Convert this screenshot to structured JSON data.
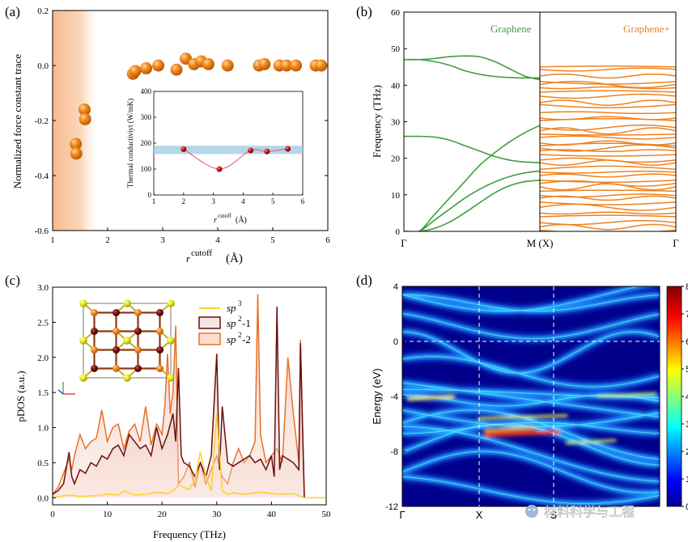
{
  "panel_labels": {
    "a": "(a)",
    "b": "(b)",
    "c": "(c)",
    "d": "(d)"
  },
  "colors": {
    "orange": "#f0821e",
    "green": "#3f9e3f",
    "darkred": "#6b0f0f",
    "band": "#a9cfe6"
  },
  "watermark": "材料科学与工程",
  "chart_data": [
    {
      "id": "a",
      "type": "scatter",
      "xlabel": "r",
      "xlabel_sup": "cutoff",
      "xlabel_unit": "(Å)",
      "ylabel": "Normalized force constant trace",
      "xlim": [
        1,
        6
      ],
      "ylim": [
        -0.6,
        0.2
      ],
      "xticks": [
        1,
        2,
        3,
        4,
        5,
        6
      ],
      "yticks": [
        -0.6,
        -0.4,
        -0.2,
        0.0,
        0.2
      ],
      "ytick_labels": [
        "-0.6",
        "-0.4",
        "-0.2",
        "0.0",
        "0.2"
      ],
      "points": [
        [
          1.42,
          -0.285
        ],
        [
          1.43,
          -0.32
        ],
        [
          1.58,
          -0.16
        ],
        [
          1.59,
          -0.195
        ],
        [
          2.46,
          -0.03
        ],
        [
          2.5,
          -0.02
        ],
        [
          2.7,
          -0.01
        ],
        [
          2.92,
          0.0
        ],
        [
          3.25,
          -0.015
        ],
        [
          3.42,
          0.025
        ],
        [
          3.57,
          0.005
        ],
        [
          3.7,
          0.015
        ],
        [
          3.83,
          0.005
        ],
        [
          4.18,
          0.0
        ],
        [
          4.75,
          0.0
        ],
        [
          4.85,
          0.005
        ],
        [
          5.12,
          0.0
        ],
        [
          5.25,
          0.0
        ],
        [
          5.42,
          0.0
        ],
        [
          5.78,
          0.0
        ],
        [
          5.88,
          0.0
        ]
      ],
      "inset": {
        "type": "line",
        "xlabel": "r",
        "xlabel_sup": "cutoff",
        "xlabel_unit": "(Å)",
        "ylabel": "Thermal conductiviyt (W/mK)",
        "xlim": [
          1,
          6
        ],
        "ylim": [
          0,
          400
        ],
        "xticks": [
          1,
          2,
          3,
          4,
          5,
          6
        ],
        "yticks": [
          0,
          100,
          200,
          300,
          400
        ],
        "band": [
          158,
          190
        ],
        "points": [
          [
            2.0,
            177
          ],
          [
            3.2,
            100
          ],
          [
            4.25,
            172
          ],
          [
            4.8,
            168
          ],
          [
            5.5,
            178
          ]
        ]
      }
    },
    {
      "id": "b",
      "type": "line",
      "ylabel": "Frequency (THz)",
      "ylim": [
        0,
        60
      ],
      "yticks": [
        0,
        10,
        20,
        30,
        40,
        50,
        60
      ],
      "xtick_labels": [
        "Γ",
        "M (X)",
        "Γ"
      ],
      "series_labels": [
        "Graphene",
        "Graphene+"
      ],
      "graphene_curves": [
        [
          0,
          0,
          4.5,
          9,
          13.5,
          18,
          21.5,
          24.5,
          27,
          29
        ],
        [
          0,
          0,
          3,
          6,
          9,
          11.5,
          13.5,
          15,
          16,
          16.5
        ],
        [
          0,
          0,
          0.8,
          2.5,
          5,
          7.8,
          10.5,
          12.5,
          13.6,
          14
        ],
        [
          0,
          26,
          25.8,
          25,
          23.5,
          22,
          20.5,
          19.5,
          19,
          18.8
        ],
        [
          0,
          47,
          47.3,
          47.8,
          48,
          47.8,
          46.5,
          44.5,
          42.5,
          41.5
        ],
        [
          0,
          47,
          46.5,
          45.5,
          44,
          43,
          42.4,
          42.1,
          42,
          42
        ]
      ],
      "graphene_plus_levels": [
        45,
        44.3,
        42.5,
        41,
        40.2,
        39.3,
        38.1,
        37,
        35.2,
        34.7,
        32.5,
        31,
        30.3,
        28.4,
        27.5,
        26.6,
        25.7,
        24.2,
        23.4,
        22.8,
        22.1,
        21,
        19.5,
        18.8,
        17,
        16.2,
        15.3,
        14,
        13.1,
        12.2,
        11,
        9.8,
        9.1,
        8,
        6.6,
        5,
        4,
        2.4,
        1.2,
        0.3
      ]
    },
    {
      "id": "c",
      "type": "area",
      "xlabel": "Frequency (THz)",
      "ylabel": "pDOS (a.u.)",
      "xlim": [
        0,
        50
      ],
      "ylim": [
        -0.1,
        3.0
      ],
      "xticks": [
        0,
        10,
        20,
        30,
        40,
        50
      ],
      "yticks": [
        0.0,
        0.5,
        1.0,
        1.5,
        2.0,
        2.5,
        3.0
      ],
      "ytick_labels": [
        "0.0",
        "0.5",
        "1.0",
        "1.5",
        "2.0",
        "2.5",
        "3.0"
      ],
      "legend": [
        "sp",
        "sp",
        "sp"
      ],
      "legend_sup": [
        "3",
        "2",
        "2"
      ],
      "legend_suffix": [
        "",
        "-1",
        "-2"
      ],
      "series": [
        {
          "name": "sp3",
          "color": "#ffd21e",
          "x": [
            0,
            3,
            5,
            8,
            10,
            12,
            13,
            15,
            17,
            19,
            21,
            22,
            23,
            24,
            25,
            26,
            27,
            28,
            29,
            30,
            31,
            32,
            33,
            35,
            38,
            40,
            42,
            44,
            45,
            46,
            50
          ],
          "y": [
            0.0,
            0.04,
            0.02,
            0.03,
            0.05,
            0.04,
            0.1,
            0.04,
            0.05,
            0.08,
            0.06,
            0.1,
            0.18,
            0.15,
            0.12,
            0.25,
            0.65,
            0.3,
            0.1,
            1.2,
            0.1,
            0.05,
            0.07,
            0.05,
            0.08,
            0.06,
            0.05,
            0.06,
            0.03,
            0.0,
            0.0
          ]
        },
        {
          "name": "sp2-1",
          "color": "#6b0f0f",
          "x": [
            0,
            1,
            2,
            3,
            3.5,
            4,
            5,
            6,
            7,
            8,
            9,
            10,
            11,
            12,
            13,
            14,
            15,
            16,
            17,
            18,
            19,
            20,
            21,
            22,
            22.5,
            23,
            23.5,
            24,
            25,
            26,
            27,
            28,
            29,
            30,
            30.5,
            31,
            32,
            33,
            34,
            35,
            36,
            37,
            38,
            39,
            40,
            40.5,
            41,
            41.5,
            42,
            43,
            44,
            45,
            45.3,
            46,
            50
          ],
          "y": [
            0.05,
            0.1,
            0.2,
            0.65,
            0.3,
            0.2,
            0.4,
            0.35,
            0.5,
            0.45,
            0.6,
            0.55,
            0.7,
            0.75,
            0.6,
            0.9,
            0.8,
            0.7,
            0.75,
            0.6,
            1.0,
            0.7,
            0.9,
            1.2,
            0.8,
            1.85,
            0.6,
            0.5,
            0.45,
            0.3,
            0.5,
            0.3,
            0.6,
            2.05,
            0.4,
            1.3,
            0.5,
            0.45,
            0.5,
            0.55,
            0.6,
            0.5,
            0.55,
            0.4,
            0.6,
            0.3,
            2.72,
            0.4,
            0.6,
            0.55,
            0.5,
            0.4,
            2.2,
            0.0,
            0.0
          ]
        },
        {
          "name": "sp2-2",
          "color": "#e8702a",
          "x": [
            0,
            1,
            2,
            3,
            3.5,
            4,
            5,
            6,
            7,
            8,
            9,
            10,
            11,
            12,
            13,
            14,
            15,
            16,
            17,
            18,
            19,
            20,
            20.5,
            21,
            21.5,
            22,
            22.5,
            23,
            24,
            25,
            26,
            27,
            28,
            29,
            30,
            31,
            32,
            33,
            34,
            35,
            36,
            37,
            37.5,
            38,
            39,
            40,
            41,
            42,
            43,
            44,
            45,
            45.3,
            46,
            50
          ],
          "y": [
            0.05,
            0.15,
            0.35,
            0.55,
            0.4,
            0.6,
            0.9,
            0.7,
            0.8,
            0.85,
            1.25,
            0.8,
            1.0,
            1.05,
            0.7,
            0.95,
            1.05,
            0.8,
            1.3,
            0.75,
            1.05,
            0.9,
            1.3,
            2.05,
            1.2,
            1.5,
            2.45,
            0.2,
            0.3,
            0.5,
            0.15,
            0.5,
            0.2,
            0.4,
            0.6,
            0.3,
            0.2,
            0.5,
            0.7,
            0.5,
            0.6,
            0.8,
            2.9,
            0.9,
            0.5,
            0.6,
            0.7,
            0.5,
            2.0,
            1.2,
            0.5,
            2.25,
            0.0,
            0.0
          ]
        }
      ]
    },
    {
      "id": "d",
      "type": "heatmap",
      "ylabel": "Energy (eV)",
      "ylim": [
        -12,
        4
      ],
      "yticks": [
        4,
        0,
        -4,
        -8,
        -12
      ],
      "xtick_labels": [
        "Γ",
        "X",
        "S",
        ""
      ],
      "colorbar": {
        "min": 0,
        "max": 8,
        "ticks": [
          0,
          1,
          2,
          3,
          4,
          5,
          6,
          7,
          8
        ]
      }
    }
  ]
}
